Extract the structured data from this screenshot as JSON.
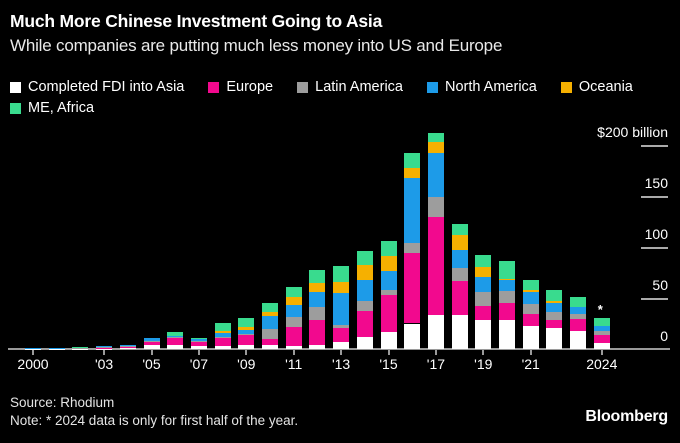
{
  "header": {
    "title": "Much More Chinese Investment Going to Asia",
    "subtitle": "While companies are putting much less money into US and Europe"
  },
  "legend": {
    "rows": [
      [
        {
          "label": "Completed FDI into Asia",
          "color": "#ffffff"
        },
        {
          "label": "Europe",
          "color": "#f2098e"
        },
        {
          "label": "Latin America",
          "color": "#9d9d9d"
        },
        {
          "label": "North America",
          "color": "#1d9be8"
        },
        {
          "label": "Oceania",
          "color": "#f6b000"
        }
      ],
      [
        {
          "label": "ME, Africa",
          "color": "#39db8e"
        }
      ]
    ]
  },
  "footer": {
    "source": "Source: Rhodium",
    "note": "Note: * 2024 data is only for first half of the year.",
    "logo": "Bloomberg"
  },
  "chart_data": {
    "type": "bar",
    "stacked": true,
    "title": "Much More Chinese Investment Going to Asia",
    "unit": "$ billion",
    "ylim": [
      0,
      200
    ],
    "grid": false,
    "legend_position": "top",
    "categories": [
      "2000",
      "2001",
      "2002",
      "2003",
      "2004",
      "2005",
      "2006",
      "2007",
      "2008",
      "2009",
      "2010",
      "2011",
      "2012",
      "2013",
      "2014",
      "2015",
      "2016",
      "2017",
      "2018",
      "2019",
      "2020",
      "2021",
      "2022",
      "2023",
      "2024"
    ],
    "series": [
      {
        "key": "asia",
        "name": "Completed FDI into Asia",
        "color": "#ffffff",
        "values": [
          0.2,
          0.2,
          0.2,
          0.3,
          0.5,
          4,
          4,
          3,
          3,
          4,
          4,
          3,
          4,
          7,
          12,
          17,
          25,
          33,
          33,
          28,
          28,
          23,
          21,
          18,
          6
        ]
      },
      {
        "key": "europe",
        "name": "Europe",
        "color": "#f2098e",
        "values": [
          0.3,
          0.3,
          0.3,
          0.5,
          2.5,
          3,
          7,
          4,
          8,
          10,
          6,
          19,
          24,
          14,
          25,
          36,
          69,
          96,
          34,
          14,
          17,
          11,
          7,
          11,
          8
        ]
      },
      {
        "key": "latin-america",
        "name": "Latin America",
        "color": "#9d9d9d",
        "values": [
          0.2,
          0.2,
          0.3,
          1.5,
          0.3,
          0.5,
          0.5,
          0.5,
          1,
          0.5,
          10,
          9,
          13,
          3,
          10,
          5,
          10,
          20,
          12,
          14,
          12,
          10,
          8,
          5,
          4
        ]
      },
      {
        "key": "north-america",
        "name": "North America",
        "color": "#1d9be8",
        "values": [
          0.4,
          0.4,
          1.2,
          0.8,
          0.8,
          3.5,
          1.5,
          2.5,
          4,
          4,
          12,
          12,
          15,
          31,
          21,
          18,
          64,
          43,
          18,
          15,
          11,
          12,
          9,
          7,
          5
        ]
      },
      {
        "key": "oceania",
        "name": "Oceania",
        "color": "#f6b000",
        "values": [
          0,
          0,
          0,
          0,
          0,
          0,
          0,
          0,
          1.5,
          3,
          4,
          8,
          9,
          11,
          14,
          15,
          9,
          11,
          15,
          9,
          1,
          2,
          2,
          0,
          0
        ]
      },
      {
        "key": "me-africa",
        "name": "ME, Africa",
        "color": "#39db8e",
        "values": [
          0,
          0,
          0.2,
          0,
          0,
          0,
          4,
          1,
          8,
          9,
          9,
          10,
          12,
          15,
          14,
          15,
          15,
          9,
          11,
          12,
          17,
          10,
          11,
          10,
          7
        ]
      }
    ],
    "yticks": [
      {
        "label": "$200 billion",
        "value": 200
      },
      {
        "label": "150",
        "value": 150
      },
      {
        "label": "100",
        "value": 100
      },
      {
        "label": "50",
        "value": 50
      },
      {
        "label": "0",
        "value": 0
      }
    ],
    "xticks": [
      {
        "label": "2000",
        "index": 0
      },
      {
        "label": "'03",
        "index": 3
      },
      {
        "label": "'05",
        "index": 5
      },
      {
        "label": "'07",
        "index": 7
      },
      {
        "label": "'09",
        "index": 9
      },
      {
        "label": "'11",
        "index": 11
      },
      {
        "label": "'13",
        "index": 13
      },
      {
        "label": "'15",
        "index": 15
      },
      {
        "label": "'17",
        "index": 17
      },
      {
        "label": "'19",
        "index": 19
      },
      {
        "label": "'21",
        "index": 21
      },
      {
        "label": "2024",
        "index": 24
      }
    ],
    "annotation": {
      "text": "*",
      "category_index": 24
    }
  }
}
